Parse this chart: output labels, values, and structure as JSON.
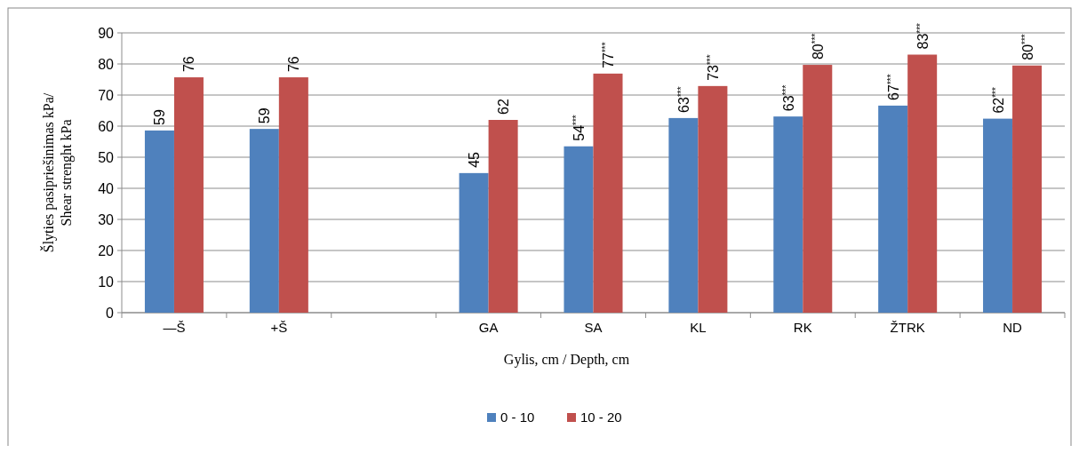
{
  "chart_data": {
    "type": "bar",
    "xlabel": "Gylis, cm / Depth, cm",
    "ylabel": "Šlyties pasipriešinimas kPa/\nShear strenght kPa",
    "categories": [
      "—Š",
      "+Š",
      null,
      "GA",
      "SA",
      "KL",
      "RK",
      "ŽTRK",
      "ND"
    ],
    "series": [
      {
        "name": "0 - 10",
        "color": "#4f81bd",
        "values": [
          58.6,
          59.1,
          null,
          44.9,
          53.5,
          62.6,
          63.1,
          66.6,
          62.4
        ],
        "value_labels": [
          "59",
          "59",
          null,
          "45",
          "54$^{***}$",
          "63$^{***}$",
          "63$^{***}$",
          "67$^{***}$",
          "62$^{***}$"
        ]
      },
      {
        "name": "10 - 20",
        "color": "#c0504d",
        "values": [
          75.7,
          75.7,
          null,
          62,
          76.9,
          72.9,
          79.7,
          83,
          79.5
        ],
        "value_labels": [
          "76",
          "76",
          null,
          "62",
          "77$^{***}$",
          "73$^{***}$",
          "80$^{***}$",
          "83$^{***}$",
          "80$^{***}$"
        ]
      }
    ],
    "ylim": [
      0,
      90
    ],
    "yticks": [
      0,
      10,
      20,
      30,
      40,
      50,
      60,
      70,
      80,
      90
    ],
    "grid": "y",
    "legend": "bottom"
  }
}
